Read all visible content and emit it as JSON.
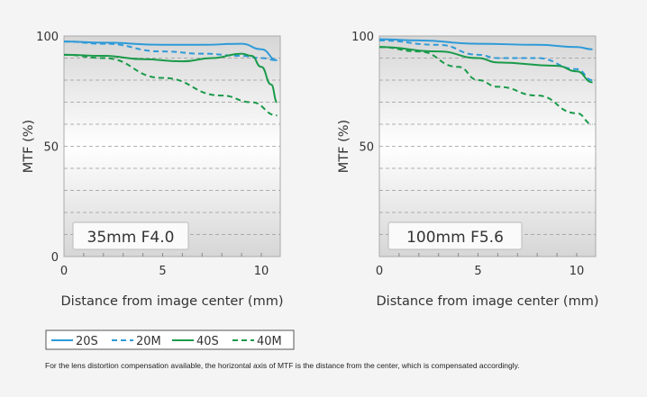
{
  "chart_data": [
    {
      "type": "line",
      "title": "35mm F4.0",
      "xlabel": "Distance from image center (mm)",
      "ylabel": "MTF (%)",
      "xlim": [
        0,
        11
      ],
      "ylim": [
        0,
        100
      ],
      "xticks": [
        0,
        5,
        10
      ],
      "yticks": [
        0,
        50,
        100
      ],
      "grid": true,
      "series": [
        {
          "name": "20S",
          "x": [
            0,
            2,
            5,
            7,
            9,
            10,
            10.8
          ],
          "y": [
            97.5,
            97,
            96,
            96,
            96.5,
            94,
            89
          ]
        },
        {
          "name": "20M",
          "x": [
            0,
            2,
            5,
            7,
            9,
            10,
            10.8
          ],
          "y": [
            97.5,
            96.5,
            93,
            92,
            91,
            90,
            89
          ]
        },
        {
          "name": "40S",
          "x": [
            0,
            2,
            4,
            6,
            7.5,
            9,
            9.5,
            10,
            10.5,
            10.8
          ],
          "y": [
            91.5,
            91,
            89.5,
            88.5,
            90,
            92,
            91,
            86,
            78,
            70
          ]
        },
        {
          "name": "40M",
          "x": [
            0,
            2,
            5,
            8,
            9.5,
            10.8
          ],
          "y": [
            91.5,
            90,
            81,
            73,
            70,
            64
          ]
        }
      ]
    },
    {
      "type": "line",
      "title": "100mm F5.6",
      "xlabel": "Distance from image center (mm)",
      "ylabel": "MTF (%)",
      "xlim": [
        0,
        11
      ],
      "ylim": [
        0,
        100
      ],
      "xticks": [
        0,
        5,
        10
      ],
      "yticks": [
        50,
        100
      ],
      "grid": true,
      "series": [
        {
          "name": "20S",
          "x": [
            0,
            2,
            5,
            8,
            10,
            10.8
          ],
          "y": [
            98.5,
            98,
            96.5,
            96,
            95,
            94
          ]
        },
        {
          "name": "20M",
          "x": [
            0,
            3,
            5,
            6,
            8,
            10,
            10.8
          ],
          "y": [
            98,
            96,
            91.5,
            90,
            90,
            85,
            80
          ]
        },
        {
          "name": "40S",
          "x": [
            0,
            3,
            5,
            6,
            9,
            10,
            10.8
          ],
          "y": [
            95,
            93,
            90,
            88,
            86.5,
            84,
            79
          ]
        },
        {
          "name": "40M",
          "x": [
            0,
            2,
            4,
            5,
            6,
            8,
            10,
            10.8
          ],
          "y": [
            95,
            93,
            86,
            80,
            77,
            73,
            65,
            60
          ]
        }
      ]
    }
  ],
  "legend": {
    "items": [
      "20S",
      "20M",
      "40S",
      "40M"
    ]
  },
  "styles": {
    "20S": {
      "color": "#2e9ad8",
      "dash": false
    },
    "20M": {
      "color": "#2e9ad8",
      "dash": true
    },
    "40S": {
      "color": "#1a9a4a",
      "dash": false
    },
    "40M": {
      "color": "#1a9a4a",
      "dash": true
    }
  },
  "note": "For the lens distortion compensation available, the horizontal axis of MTF is the distance from the center, which is compensated accordingly."
}
